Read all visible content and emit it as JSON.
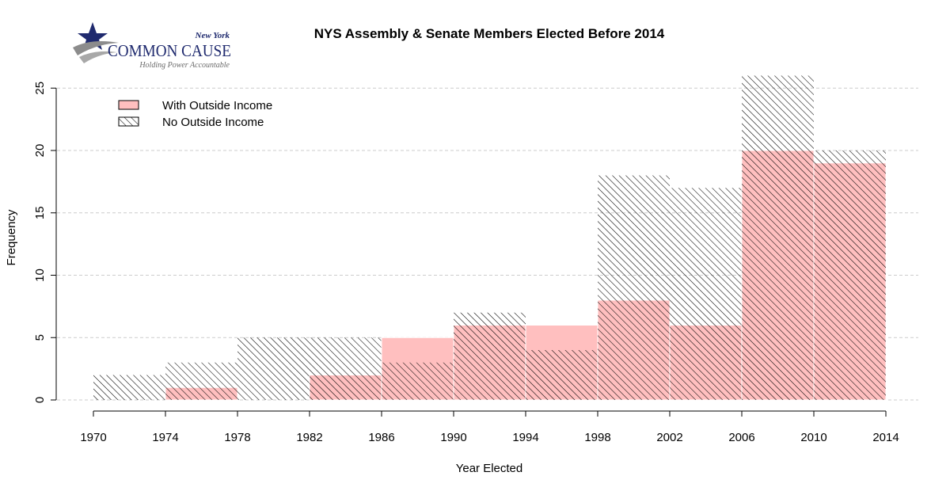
{
  "logo": {
    "top_text": "New York",
    "main_text": "COMMON CAUSE",
    "tagline": "Holding Power Accountable"
  },
  "colors": {
    "with_fill": "#ffbfbf",
    "hatch": "#000000",
    "grid": "#cccccc",
    "logo_navy": "#1f2a6e",
    "logo_gray": "#8c8c8c"
  },
  "chart_data": {
    "type": "bar",
    "title": "NYS Assembly & Senate Members Elected Before 2014",
    "xlabel": "Year Elected",
    "ylabel": "Frequency",
    "bin_edges": [
      1970,
      1974,
      1978,
      1982,
      1986,
      1990,
      1994,
      1998,
      2002,
      2006,
      2010,
      2014
    ],
    "x_ticks": [
      1970,
      1974,
      1978,
      1982,
      1986,
      1990,
      1994,
      1998,
      2002,
      2006,
      2010,
      2014
    ],
    "y_ticks": [
      0,
      5,
      10,
      15,
      20,
      25
    ],
    "ylim": [
      0,
      26
    ],
    "grid": "horizontal dashed",
    "legend_position": "top-left",
    "series": [
      {
        "name": "With Outside Income",
        "style": "solid",
        "values": [
          0,
          1,
          0,
          2,
          5,
          6,
          6,
          8,
          6,
          20,
          19
        ]
      },
      {
        "name": "No Outside Income",
        "style": "hatched",
        "values": [
          2,
          3,
          5,
          5,
          3,
          7,
          4,
          18,
          17,
          26,
          20
        ]
      }
    ]
  }
}
